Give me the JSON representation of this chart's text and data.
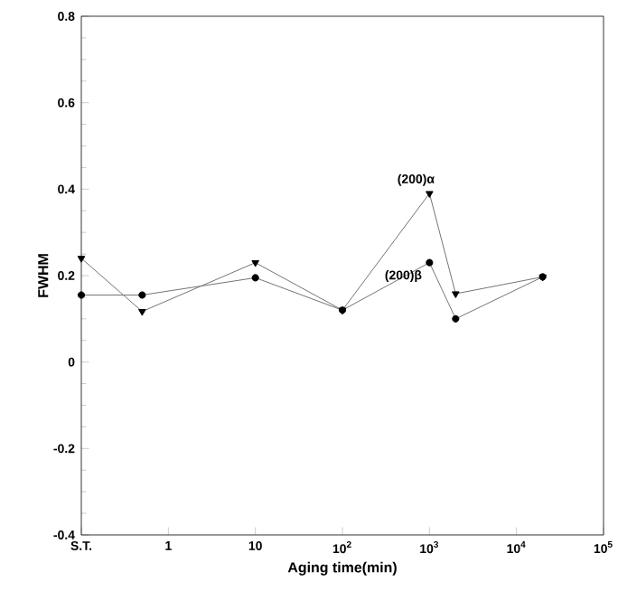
{
  "chart_data": {
    "type": "line",
    "xlabel": "Aging time(min)",
    "ylabel": "FWHM",
    "log": "x",
    "x": [
      0.1,
      0.5,
      10,
      100,
      1000,
      2000,
      20000
    ],
    "series": [
      {
        "name": "(200)α",
        "color": "#000000",
        "marker": "triangle",
        "values": [
          0.24,
          0.117,
          0.23,
          0.12,
          0.39,
          0.158,
          0.197
        ]
      },
      {
        "name": "(200)β",
        "color": "#000000",
        "marker": "circle",
        "values": [
          0.155,
          0.155,
          0.195,
          0.12,
          0.23,
          0.1,
          0.197
        ]
      }
    ],
    "xlim": [
      0.1,
      100000
    ],
    "ylim": [
      -0.4,
      0.8
    ],
    "xticks": [
      {
        "value": 0.1,
        "label": "S.T."
      },
      1,
      10,
      {
        "value": 100,
        "label": "10$^{2}$"
      },
      {
        "value": 1000,
        "label": "10$^{3}$"
      },
      {
        "value": 10000,
        "label": "10$^{4}$"
      },
      {
        "value": 100000,
        "label": "10$^{5}$"
      }
    ],
    "yticks": [
      -0.4,
      -0.2,
      0,
      0.2,
      0.4,
      0.6,
      0.8
    ],
    "grid": false,
    "legend": false,
    "line_style": "solid"
  }
}
